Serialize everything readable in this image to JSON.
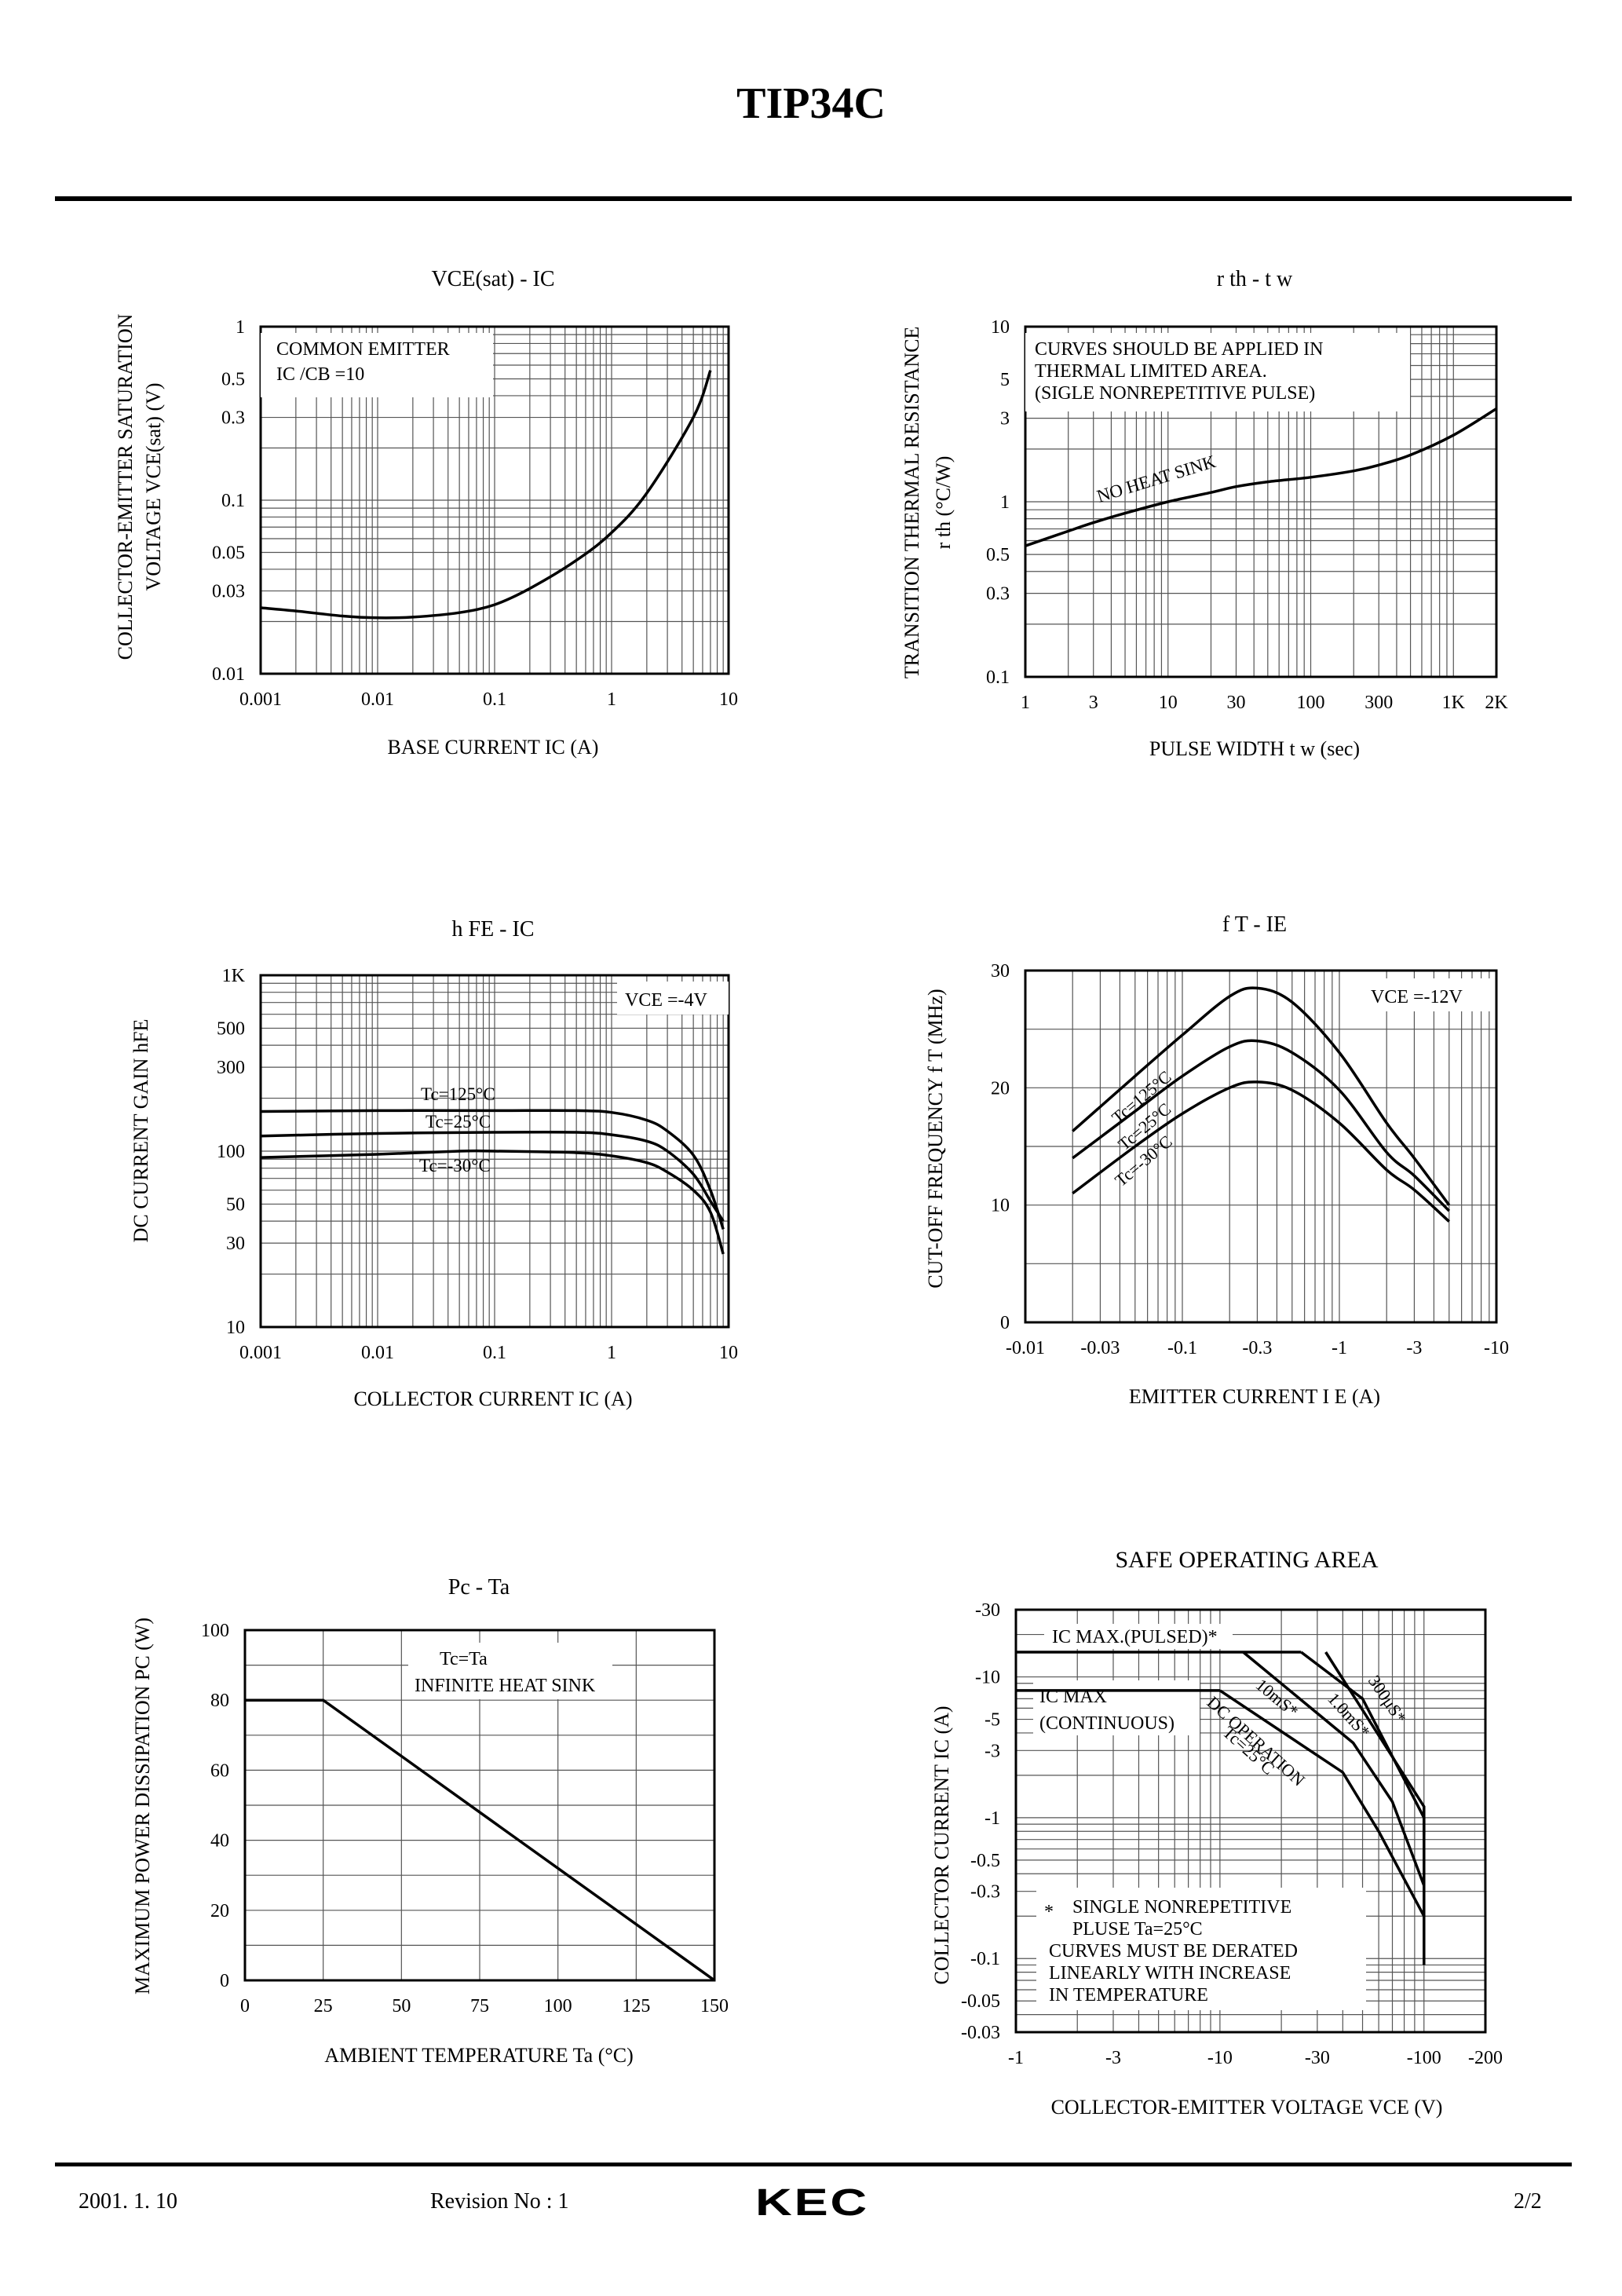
{
  "document": {
    "title": "TIP34C",
    "footer": {
      "date": "2001. 1. 10",
      "revision": "Revision No : 1",
      "logo": "KEC",
      "page": "2/2"
    }
  },
  "chart_data": [
    {
      "id": "vce-ic",
      "type": "line",
      "title": "VCE(sat)  -  IC",
      "xlabel": "BASE CURRENT IC   (A)",
      "ylabel1": "COLLECTOR-EMITTER SATURATION",
      "ylabel2": "VOLTAGE VCE(sat)  (V)",
      "xscale": "log",
      "yscale": "log",
      "xlim": [
        0.001,
        10
      ],
      "ylim": [
        0.01,
        1
      ],
      "xticks": [
        {
          "v": 0.001,
          "t": "0.001"
        },
        {
          "v": 0.01,
          "t": "0.01"
        },
        {
          "v": 0.1,
          "t": "0.1"
        },
        {
          "v": 1,
          "t": "1"
        },
        {
          "v": 10,
          "t": "10"
        }
      ],
      "yticks": [
        {
          "v": 1,
          "t": "1"
        },
        {
          "v": 0.5,
          "t": "0.5"
        },
        {
          "v": 0.3,
          "t": "0.3"
        },
        {
          "v": 0.1,
          "t": "0.1"
        },
        {
          "v": 0.05,
          "t": "0.05"
        },
        {
          "v": 0.03,
          "t": "0.03"
        },
        {
          "v": 0.01,
          "t": "0.01"
        }
      ],
      "annotations": [
        "COMMON EMITTER",
        "IC /CB =10"
      ],
      "series": [
        {
          "name": "VCE(sat)",
          "x": [
            0.001,
            0.002,
            0.005,
            0.01,
            0.02,
            0.05,
            0.1,
            0.2,
            0.5,
            1,
            2,
            5,
            7
          ],
          "y": [
            0.024,
            0.023,
            0.0215,
            0.021,
            0.0212,
            0.0225,
            0.025,
            0.031,
            0.045,
            0.065,
            0.11,
            0.3,
            0.56
          ]
        }
      ]
    },
    {
      "id": "rth-tw",
      "type": "line",
      "title": "r th  -  t w",
      "xlabel": "PULSE WIDTH t w  (sec)",
      "ylabel1": "TRANSITION THERMAL RESISTANCE",
      "ylabel2": "r th   (°C/W)",
      "xscale": "log",
      "yscale": "log",
      "xlim": [
        1,
        2000
      ],
      "ylim": [
        0.1,
        10
      ],
      "xticks": [
        {
          "v": 1,
          "t": "1"
        },
        {
          "v": 3,
          "t": "3"
        },
        {
          "v": 10,
          "t": "10"
        },
        {
          "v": 30,
          "t": "30"
        },
        {
          "v": 100,
          "t": "100"
        },
        {
          "v": 300,
          "t": "300"
        },
        {
          "v": 1000,
          "t": "1K"
        },
        {
          "v": 2000,
          "t": "2K"
        }
      ],
      "yticks": [
        {
          "v": 10,
          "t": "10"
        },
        {
          "v": 5,
          "t": "5"
        },
        {
          "v": 3,
          "t": "3"
        },
        {
          "v": 1,
          "t": "1"
        },
        {
          "v": 0.5,
          "t": "0.5"
        },
        {
          "v": 0.3,
          "t": "0.3"
        },
        {
          "v": 0.1,
          "t": "0.1"
        }
      ],
      "annotations": [
        "CURVES SHOULD BE APPLIED IN",
        "THERMAL LIMITED AREA.",
        "(SIGLE NONREPETITIVE PULSE)",
        "NO HEAT SINK"
      ],
      "series": [
        {
          "name": "NO HEAT SINK",
          "x": [
            1,
            2,
            3,
            5,
            10,
            20,
            30,
            50,
            100,
            200,
            300,
            500,
            1000,
            2000
          ],
          "y": [
            0.56,
            0.68,
            0.76,
            0.86,
            1.0,
            1.13,
            1.22,
            1.3,
            1.38,
            1.5,
            1.62,
            1.85,
            2.4,
            3.4
          ]
        }
      ]
    },
    {
      "id": "hfe-ic",
      "type": "line",
      "title": "h FE  -  IC",
      "xlabel": "COLLECTOR CURRENT IC   (A)",
      "ylabel1": "DC CURRENT GAIN hFE",
      "xscale": "log",
      "yscale": "log",
      "xlim": [
        0.001,
        10
      ],
      "ylim": [
        10,
        1000
      ],
      "xticks": [
        {
          "v": 0.001,
          "t": "0.001"
        },
        {
          "v": 0.01,
          "t": "0.01"
        },
        {
          "v": 0.1,
          "t": "0.1"
        },
        {
          "v": 1,
          "t": "1"
        },
        {
          "v": 10,
          "t": "10"
        }
      ],
      "yticks": [
        {
          "v": 1000,
          "t": "1K"
        },
        {
          "v": 500,
          "t": "500"
        },
        {
          "v": 300,
          "t": "300"
        },
        {
          "v": 100,
          "t": "100"
        },
        {
          "v": 50,
          "t": "50"
        },
        {
          "v": 30,
          "t": "30"
        },
        {
          "v": 10,
          "t": "10"
        }
      ],
      "annotations": [
        "VCE =-4V"
      ],
      "series": [
        {
          "name": "Tc=125°C",
          "x": [
            0.001,
            0.01,
            0.1,
            0.5,
            1,
            2,
            3,
            5,
            7,
            9
          ],
          "y": [
            168,
            170,
            170,
            170,
            166,
            150,
            130,
            95,
            60,
            36
          ]
        },
        {
          "name": "Tc=25°C",
          "x": [
            0.001,
            0.01,
            0.1,
            0.5,
            1,
            2,
            3,
            5,
            7,
            9
          ],
          "y": [
            122,
            126,
            128,
            128,
            124,
            114,
            100,
            74,
            52,
            40
          ]
        },
        {
          "name": "Tc=-30°C",
          "x": [
            0.001,
            0.01,
            0.05,
            0.1,
            0.5,
            1,
            2,
            3,
            5,
            7,
            9
          ],
          "y": [
            92,
            96,
            100,
            100,
            98,
            94,
            86,
            76,
            60,
            45,
            26
          ]
        }
      ]
    },
    {
      "id": "ft-ie",
      "type": "line",
      "title": "f T  -  IE",
      "xlabel": "EMITTER CURRENT I E   (A)",
      "ylabel1": "CUT-OFF FREQUENCY f T  (MHz)",
      "xscale": "log",
      "yscale": "linear",
      "xlim": [
        -0.01,
        -10
      ],
      "ylim": [
        0,
        30
      ],
      "xticks": [
        {
          "v": -0.01,
          "t": "-0.01"
        },
        {
          "v": -0.03,
          "t": "-0.03"
        },
        {
          "v": -0.1,
          "t": "-0.1"
        },
        {
          "v": -0.3,
          "t": "-0.3"
        },
        {
          "v": -1,
          "t": "-1"
        },
        {
          "v": -3,
          "t": "-3"
        },
        {
          "v": -10,
          "t": "-10"
        }
      ],
      "yticks": [
        {
          "v": 30,
          "t": "30"
        },
        {
          "v": 20,
          "t": "20"
        },
        {
          "v": 10,
          "t": "10"
        },
        {
          "v": 0,
          "t": "0"
        }
      ],
      "annotations": [
        "VCE =-12V"
      ],
      "series": [
        {
          "name": "Tc=125°C",
          "x": [
            -0.02,
            -0.05,
            -0.1,
            -0.2,
            -0.3,
            -0.5,
            -1,
            -2,
            -3,
            -5
          ],
          "y": [
            16.3,
            21,
            24.5,
            27.8,
            28.5,
            27.3,
            23,
            17,
            14,
            10
          ]
        },
        {
          "name": "Tc=25°C",
          "x": [
            -0.02,
            -0.05,
            -0.1,
            -0.2,
            -0.3,
            -0.5,
            -1,
            -2,
            -3,
            -5
          ],
          "y": [
            14,
            18,
            21,
            23.5,
            24,
            23,
            19.8,
            14.5,
            12.5,
            9.5
          ]
        },
        {
          "name": "Tc=-30°C",
          "x": [
            -0.02,
            -0.05,
            -0.1,
            -0.2,
            -0.3,
            -0.5,
            -1,
            -2,
            -3,
            -5
          ],
          "y": [
            11,
            15,
            17.8,
            20,
            20.5,
            19.8,
            17,
            13,
            11.3,
            8.6
          ]
        }
      ]
    },
    {
      "id": "pc-ta",
      "type": "line",
      "title": "Pc  -  Ta",
      "xlabel": "AMBIENT TEMPERATURE Ta (°C)",
      "ylabel1": "MAXIMUM POWER DISSIPATION PC  (W)",
      "xscale": "linear",
      "yscale": "linear",
      "xlim": [
        0,
        150
      ],
      "ylim": [
        0,
        100
      ],
      "xticks": [
        {
          "v": 0,
          "t": "0"
        },
        {
          "v": 25,
          "t": "25"
        },
        {
          "v": 50,
          "t": "50"
        },
        {
          "v": 75,
          "t": "75"
        },
        {
          "v": 100,
          "t": "100"
        },
        {
          "v": 125,
          "t": "125"
        },
        {
          "v": 150,
          "t": "150"
        }
      ],
      "yticks": [
        {
          "v": 100,
          "t": "100"
        },
        {
          "v": 80,
          "t": "80"
        },
        {
          "v": 60,
          "t": "60"
        },
        {
          "v": 40,
          "t": "40"
        },
        {
          "v": 20,
          "t": "20"
        },
        {
          "v": 0,
          "t": "0"
        }
      ],
      "annotations": [
        "Tc=Ta",
        "INFINITE HEAT SINK"
      ],
      "series": [
        {
          "name": "Pc",
          "x": [
            0,
            25,
            150
          ],
          "y": [
            80,
            80,
            0
          ]
        }
      ]
    },
    {
      "id": "soa",
      "type": "line",
      "title": "SAFE OPERATING AREA",
      "xlabel": "COLLECTOR-EMITTER VOLTAGE VCE  (V)",
      "ylabel1": "COLLECTOR CURRENT IC   (A)",
      "xscale": "log",
      "yscale": "log",
      "xlim": [
        -1,
        -200
      ],
      "ylim": [
        -0.03,
        -30
      ],
      "xticks": [
        {
          "v": -1,
          "t": "-1"
        },
        {
          "v": -3,
          "t": "-3"
        },
        {
          "v": -10,
          "t": "-10"
        },
        {
          "v": -30,
          "t": "-30"
        },
        {
          "v": -100,
          "t": "-100"
        },
        {
          "v": -200,
          "t": "-200"
        }
      ],
      "yticks": [
        {
          "v": -30,
          "t": "-30"
        },
        {
          "v": -10,
          "t": "-10"
        },
        {
          "v": -5,
          "t": "-5"
        },
        {
          "v": -3,
          "t": "-3"
        },
        {
          "v": -1,
          "t": "-1"
        },
        {
          "v": -0.5,
          "t": "-0.5"
        },
        {
          "v": -0.3,
          "t": "-0.3"
        },
        {
          "v": -0.1,
          "t": "-0.1"
        },
        {
          "v": -0.05,
          "t": "-0.05"
        },
        {
          "v": -0.03,
          "t": "-0.03"
        }
      ],
      "annotations": [
        "IC  MAX.(PULSED)*",
        "IC  MAX",
        "(CONTINUOUS)",
        "300μS*",
        "1.0mS*",
        "10mS*",
        "DC OPERATION",
        "Tc=25°C",
        "*",
        "SINGLE NONREPETITIVE",
        "PLUSE Ta=25°C",
        "CURVES MUST BE DERATED",
        "LINEARLY WITH INCREASE",
        "IN TEMPERATURE"
      ],
      "series": [
        {
          "name": "IC MAX (CONTINUOUS)",
          "x": [
            -1,
            -10
          ],
          "y": [
            -8,
            -8
          ]
        },
        {
          "name": "IC MAX (PULSED)",
          "x": [
            -1,
            -25
          ],
          "y": [
            -15,
            -15
          ]
        },
        {
          "name": "DC OPERATION",
          "x": [
            -10,
            -40,
            -60,
            -100,
            -100
          ],
          "y": [
            -8,
            -2.1,
            -0.8,
            -0.2,
            -0.09
          ]
        },
        {
          "name": "10mS",
          "x": [
            -13,
            -45,
            -70,
            -100,
            -100
          ],
          "y": [
            -15,
            -3.4,
            -1.3,
            -0.33,
            -0.2
          ]
        },
        {
          "name": "1.0mS",
          "x": [
            -25,
            -50,
            -100,
            -100
          ],
          "y": [
            -15,
            -7,
            -1,
            -0.33
          ]
        },
        {
          "name": "300μS",
          "x": [
            -33,
            -100,
            -100
          ],
          "y": [
            -15,
            -1.2,
            -0.75
          ]
        }
      ]
    }
  ]
}
